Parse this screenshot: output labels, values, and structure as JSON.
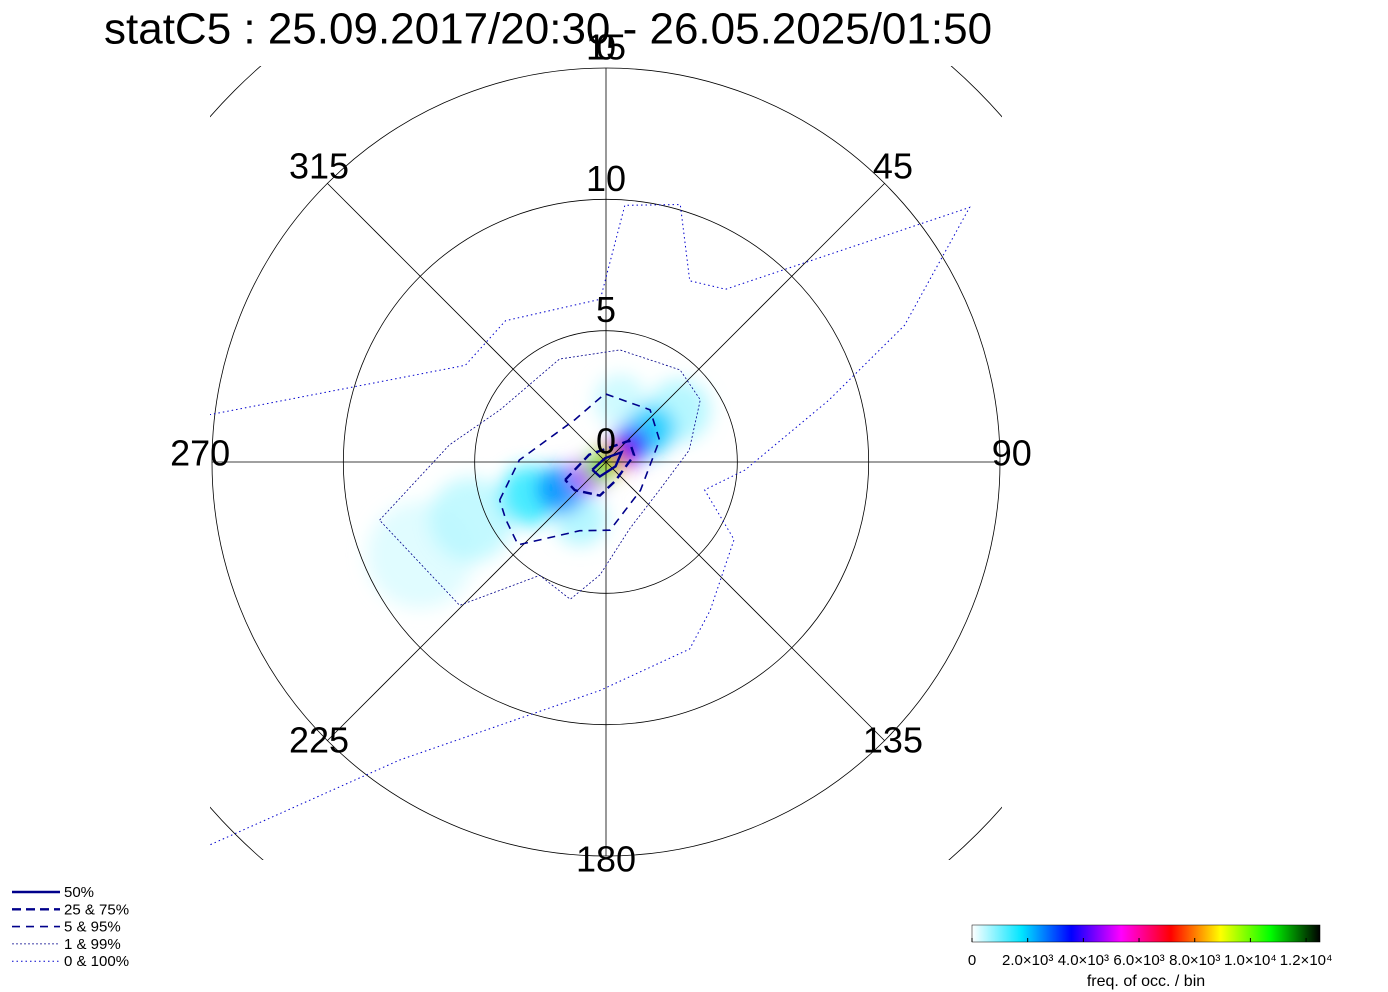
{
  "chart_data": {
    "type": "polar",
    "title": "statC5 : 25.09.2017/20:30 - 26.05.2025/01:50",
    "rlim": [
      0,
      15
    ],
    "rticks": [
      0,
      5,
      10,
      15
    ],
    "angle_ticks": [
      0,
      45,
      90,
      135,
      180,
      225,
      270,
      315
    ],
    "contours": [
      {
        "name": "50%",
        "color": "#00008b",
        "dash": "solid",
        "theta": [
          240.3,
          346,
          58,
          114,
          203,
          240.3
        ],
        "r": [
          0.6,
          0.15,
          0.7,
          0.4,
          0.6,
          0.6
        ]
      },
      {
        "name": "25 &  75%",
        "color": "#00008b",
        "dash": "long-dash",
        "theta": [
          246.3,
          293.6,
          47.5,
          76.4,
          153.4,
          190.3,
          228,
          246.3
        ],
        "r": [
          1.7,
          0.7,
          1.2,
          1.1,
          0.8,
          1.3,
          1.6,
          1.7
        ]
      },
      {
        "name": "5 &  95%",
        "color": "#00008b",
        "dash": "dash",
        "theta": [
          250.3,
          271.3,
          323.6,
          359.1,
          40.2,
          67.8,
          129.5,
          176.6,
          200.9,
          226.7,
          240.1,
          250.3
        ],
        "r": [
          4.3,
          3.3,
          2.0,
          2.6,
          2.6,
          2.2,
          1.7,
          2.6,
          2.8,
          4.6,
          4.4,
          4.3
        ]
      },
      {
        "name": "1 &  99%",
        "color": "#00008b",
        "dash": "fine-dot",
        "theta": [
          255.6,
          276.2,
          296.1,
          335.7,
          7.1,
          38.8,
          56.6,
          81.9,
          117.4,
          160.6,
          183,
          194.6,
          210.3,
          225.6,
          255.6
        ],
        "r": [
          8.9,
          6.0,
          4.5,
          4.3,
          4.3,
          4.5,
          4.3,
          3.2,
          2.3,
          2.7,
          4.3,
          5.4,
          5.0,
          7.8,
          8.9
        ]
      },
      {
        "name": "0 & 100%",
        "color": "#0000cd",
        "dash": "dot",
        "theta": [
          276.8,
          304.5,
          324.6,
          358,
          4.2,
          16.1,
          24.8,
          34.7,
          55,
          65.4,
          74.5,
          93.3,
          105.8,
          121.2,
          144.9,
          155.9,
          181.5,
          214.7,
          226
        ],
        "r": [
          15.2,
          6.5,
          6.6,
          6.2,
          9.8,
          10.2,
          7.6,
          8.0,
          16.9,
          12.5,
          8.8,
          5.3,
          3.9,
          5.7,
          6.9,
          7.8,
          8.7,
          13.8,
          21.0
        ]
      }
    ],
    "density": {
      "theta": [
        243.4,
        246.9,
        13,
        54.9,
        204,
        246.5,
        54,
        238.7,
        55,
        231,
        70,
        230
      ],
      "r": [
        7.9,
        5.6,
        2.4,
        3.4,
        2.4,
        3.2,
        2.1,
        2.0,
        1.1,
        0.8,
        0.25,
        0.3
      ],
      "values": [
        250,
        500,
        400,
        600,
        600,
        1500,
        2000,
        2500,
        4000,
        5000,
        7000,
        10000
      ]
    },
    "colorbar": {
      "colors": [
        "#ffffff",
        "#00e5ff",
        "#0000ff",
        "#ff00ff",
        "#ff0000",
        "#ffff00",
        "#00ff00",
        "#000000"
      ],
      "clim": [
        0,
        12500
      ],
      "ticks": [
        0,
        {
          "value": 2000,
          "label": "2.0×10³"
        },
        {
          "value": 4000,
          "label": "4.0×10³"
        },
        {
          "value": 6000,
          "label": "6.0×10³"
        },
        {
          "value": 8000,
          "label": "8.0×10³"
        },
        {
          "value": 10000,
          "label": "1.0×10⁴"
        },
        {
          "value": 12000,
          "label": "1.2×10⁴"
        }
      ],
      "label": "freq. of occ. / bin"
    }
  }
}
